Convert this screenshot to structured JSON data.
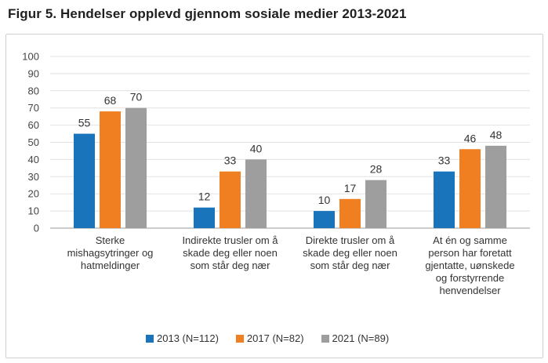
{
  "figure": {
    "title": "Figur 5. Hendelser opplevd gjennom sosiale medier 2013-2021"
  },
  "chart_data": {
    "type": "bar",
    "title": "",
    "xlabel": "",
    "ylabel": "",
    "ylim": [
      0,
      100
    ],
    "yticks": [
      0,
      10,
      20,
      30,
      40,
      50,
      60,
      70,
      80,
      90,
      100
    ],
    "grid": true,
    "legend_position": "bottom",
    "categories": [
      [
        "Sterke",
        "mishagsytringer og",
        "hatmeldinger"
      ],
      [
        "Indirekte trusler om å",
        "skade deg eller noen",
        "som står deg nær"
      ],
      [
        "Direkte trusler om å",
        "skade deg eller noen",
        "som står deg nær"
      ],
      [
        "At én og samme",
        "person har foretatt",
        "gjentatte, uønskede",
        "og forstyrrende",
        "henvendelser"
      ]
    ],
    "series": [
      {
        "name": "2013 (N=112)",
        "color": "#1a74bb",
        "values": [
          55,
          12,
          10,
          33
        ]
      },
      {
        "name": "2017 (N=82)",
        "color": "#f07f22",
        "values": [
          68,
          33,
          17,
          46
        ]
      },
      {
        "name": "2021 (N=89)",
        "color": "#9e9e9e",
        "values": [
          70,
          40,
          28,
          48
        ]
      }
    ]
  }
}
